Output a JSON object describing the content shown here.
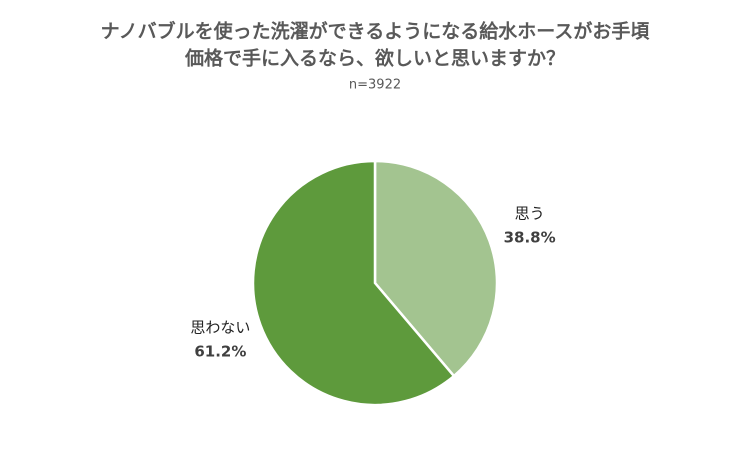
{
  "chart_data": {
    "type": "pie",
    "title": [
      "ナノバブルを使った洗濯ができるようになる給水ホースがお手頃",
      "価格で手に入るなら、欲しいと思いますか？"
    ],
    "subtitle": "n=3922",
    "categories": [
      "思う",
      "思わない"
    ],
    "values": [
      38.8,
      61.2
    ],
    "value_labels": [
      "38.8%",
      "61.2%"
    ],
    "colors": [
      "#a3c490",
      "#5e9a3c"
    ]
  }
}
